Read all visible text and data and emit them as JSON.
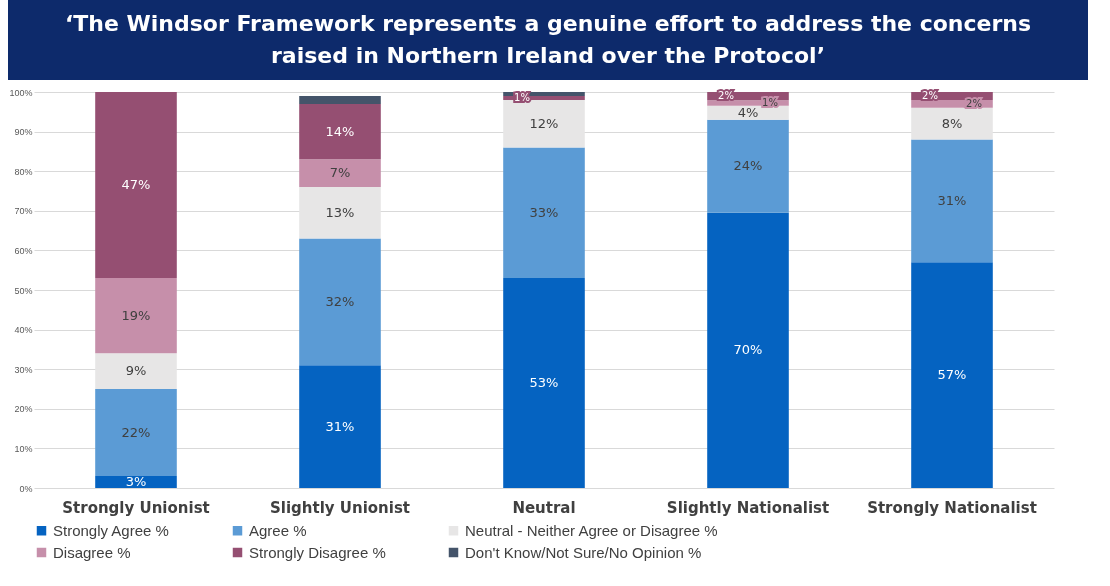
{
  "chart_data": {
    "type": "bar",
    "stacked": true,
    "title": "‘The Windsor Framework represents a genuine effort  to address the concerns raised in Northern Ireland over the Protocol’",
    "categories": [
      "Strongly Unionist",
      "Slightly Unionist",
      "Neutral",
      "Slightly Nationalist",
      "Strongly Nationalist"
    ],
    "series": [
      {
        "name": "Strongly Agree %",
        "color": "#0563c1",
        "values": [
          3,
          31,
          53,
          69.5,
          57
        ],
        "value_labels": [
          "3%",
          "31%",
          "53%",
          "70%",
          "57%"
        ]
      },
      {
        "name": "Agree %",
        "color": "#5b9bd5",
        "values": [
          22,
          32,
          33,
          23.5,
          31
        ],
        "value_labels": [
          "22%",
          "32%",
          "33%",
          "24%",
          "31%"
        ]
      },
      {
        "name": "Neutral - Neither Agree or Disagree %",
        "color": "#e7e6e6",
        "values": [
          9,
          13,
          12,
          3.5,
          8
        ],
        "value_labels": [
          "9%",
          "13%",
          "12%",
          "4%",
          "8%"
        ]
      },
      {
        "name": "Disagree %",
        "color": "#c68faa",
        "values": [
          19,
          7,
          null,
          1.4,
          2
        ],
        "value_labels": [
          "19%",
          "7%",
          null,
          "1%",
          "2%"
        ]
      },
      {
        "name": "Strongly Disagree %",
        "color": "#954f72",
        "values": [
          47,
          14,
          1,
          2.1,
          2
        ],
        "value_labels": [
          "47%",
          "14%",
          "1%",
          "2%",
          "2%"
        ]
      },
      {
        "name": "Don't Know/Not Sure/No Opinion %",
        "color": "#44546a",
        "values": [
          null,
          2,
          1,
          null,
          null
        ],
        "value_labels": [
          null,
          null,
          null,
          null,
          null
        ]
      }
    ],
    "ylim": [
      0,
      100
    ],
    "yticks": [
      {
        "value": 0,
        "label": "0%"
      },
      {
        "value": 10,
        "label": "10%"
      },
      {
        "value": 20,
        "label": "20%"
      },
      {
        "value": 30,
        "label": "30%"
      },
      {
        "value": 40,
        "label": "40%"
      },
      {
        "value": 50,
        "label": "50%"
      },
      {
        "value": 60,
        "label": "60%"
      },
      {
        "value": 70,
        "label": "70%"
      },
      {
        "value": 80,
        "label": "80%"
      },
      {
        "value": 90,
        "label": "90%"
      },
      {
        "value": 100,
        "label": "100%"
      }
    ],
    "grid": "y",
    "legend": "bottom"
  }
}
